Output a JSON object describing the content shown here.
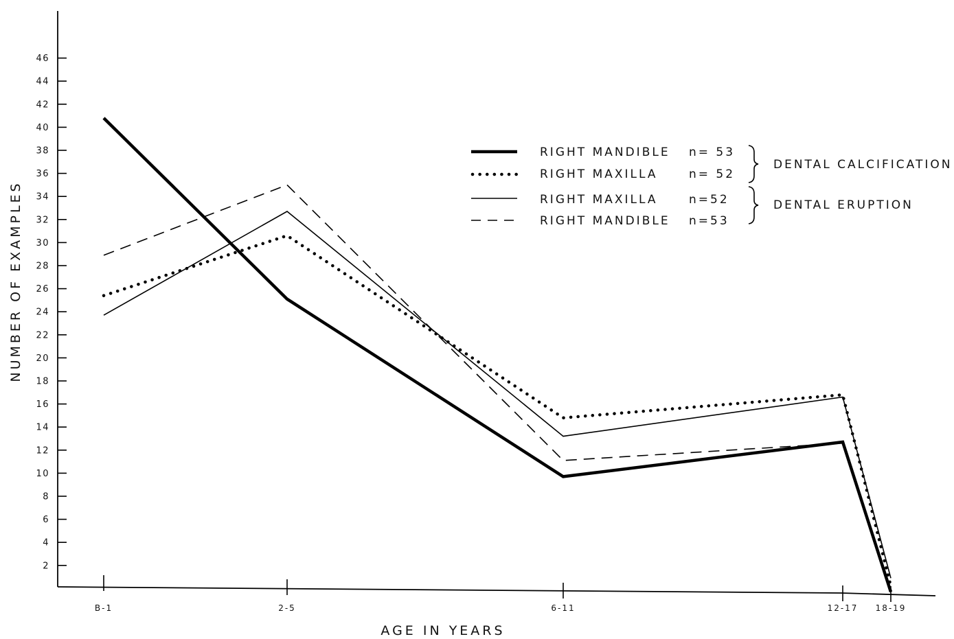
{
  "chart_data": {
    "type": "line",
    "xlabel": "AGE IN YEARS",
    "ylabel": "NUMBER OF EXAMPLES",
    "categories": [
      "B-1",
      "2-5",
      "6-11",
      "12-17",
      "18-19"
    ],
    "y_ticks": [
      2,
      4,
      6,
      8,
      10,
      12,
      14,
      16,
      18,
      20,
      22,
      24,
      26,
      28,
      30,
      32,
      34,
      36,
      38,
      40,
      42,
      44,
      46
    ],
    "ylim": [
      0,
      46
    ],
    "grid": false,
    "legend_position": "upper-right",
    "series": [
      {
        "name": "RIGHT MANDIBLE",
        "n": "n= 53",
        "group": "DENTAL CALCIFICATION",
        "style": "thick-solid",
        "values": [
          40.8,
          25.1,
          9.7,
          12.7,
          -0.3
        ]
      },
      {
        "name": "RIGHT MAXILLA",
        "n": "n= 52",
        "group": "DENTAL CALCIFICATION",
        "style": "dotted",
        "values": [
          25.4,
          30.6,
          14.8,
          16.8,
          0.2
        ]
      },
      {
        "name": "RIGHT MAXILLA",
        "n": "n=52",
        "group": "DENTAL ERUPTION",
        "style": "thin-solid",
        "values": [
          23.7,
          32.7,
          13.2,
          16.6,
          0.9
        ]
      },
      {
        "name": "RIGHT MANDIBLE",
        "n": "n=53",
        "group": "DENTAL ERUPTION",
        "style": "dashed",
        "values": [
          28.9,
          35.0,
          11.1,
          12.6,
          -0.1
        ]
      }
    ],
    "legend_groups": [
      "DENTAL CALCIFICATION",
      "DENTAL ERUPTION"
    ]
  }
}
